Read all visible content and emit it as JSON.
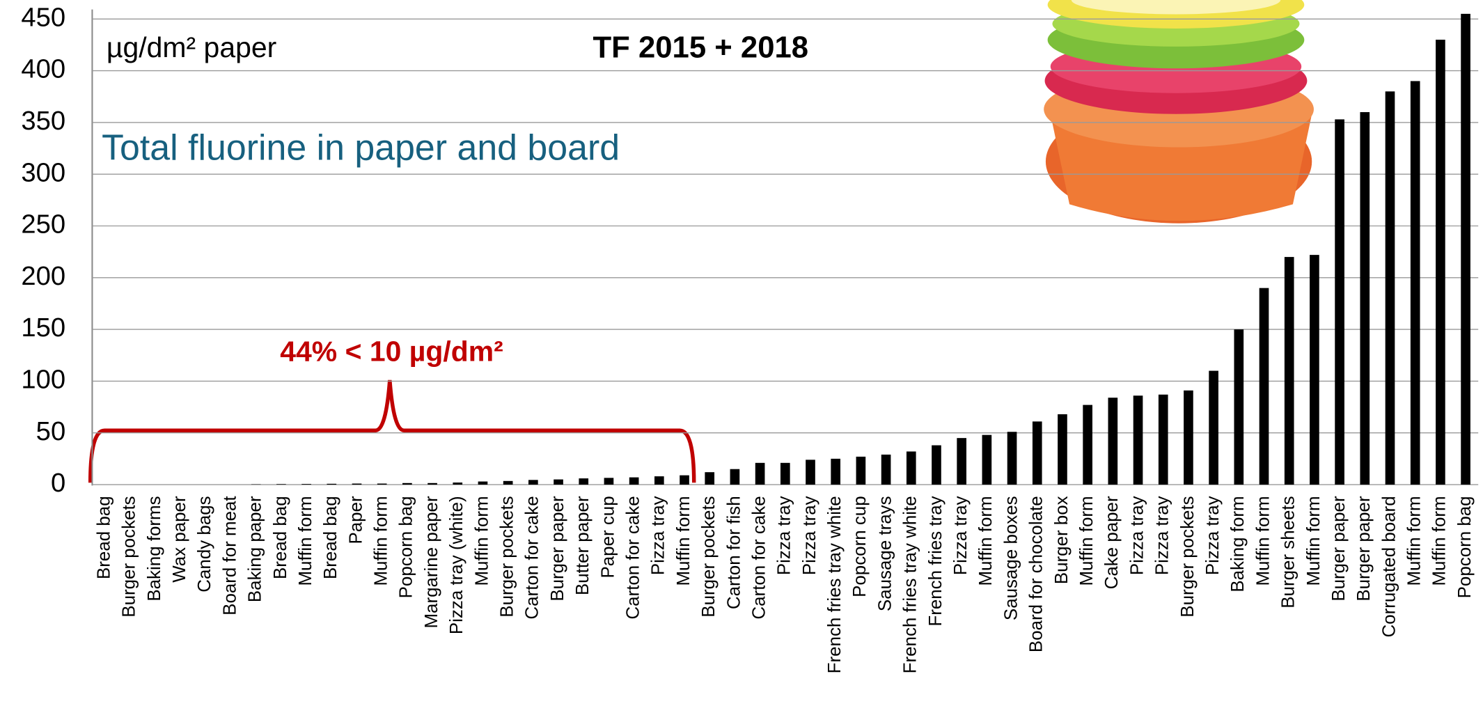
{
  "chart_data": {
    "type": "bar",
    "title": "TF 2015 + 2018",
    "subtitle": "Total fluorine in paper and board",
    "y_label": "µg/dm² paper",
    "annotation": "44% < 10 µg/dm²",
    "categories": [
      "Bread bag",
      "Burger pockets",
      "Baking forms",
      "Wax paper",
      "Candy bags",
      "Board for meat",
      "Baking paper",
      "Bread bag",
      "Muffin form",
      "Bread bag",
      "Paper",
      "Muffin form",
      "Popcorn bag",
      "Margarine paper",
      "Pizza tray (white)",
      "Muffin form",
      "Burger pockets",
      "Carton for cake",
      "Burger paper",
      "Butter paper",
      "Paper cup",
      "Carton for cake",
      "Pizza tray",
      "Muffin form",
      "Burger pockets",
      "Carton for fish",
      "Carton for cake",
      "Pizza tray",
      "Pizza tray",
      "French fries tray white",
      "Popcorn cup",
      "Sausage trays",
      "French fries tray white",
      "French fries tray",
      "Pizza tray",
      "Muffin form",
      "Sausage boxes",
      "Board for chocolate",
      "Burger box",
      "Muffin form",
      "Cake paper",
      "Pizza tray",
      "Pizza tray",
      "Burger pockets",
      "Pizza tray",
      "Baking form",
      "Muffin form",
      "Burger sheets",
      "Muffin form",
      "Burger paper",
      "Burger paper",
      "Corrugated board",
      "Muffin form",
      "Muffin form",
      "Popcorn bag"
    ],
    "values": [
      0,
      0,
      0,
      0,
      0,
      0,
      0.3,
      0.5,
      0.6,
      0.8,
      1,
      1,
      1.5,
      1.5,
      2,
      3,
      3.5,
      4.5,
      5,
      6,
      6.5,
      7,
      8,
      9,
      12,
      15,
      21,
      21,
      24,
      25,
      27,
      29,
      32,
      38,
      45,
      48,
      51,
      61,
      68,
      77,
      84,
      86,
      87,
      91,
      110,
      150,
      190,
      220,
      222,
      353,
      360,
      380,
      390,
      430,
      455
    ],
    "color": "#000000",
    "ylim": [
      0,
      460
    ],
    "yticks": [
      0,
      50,
      100,
      150,
      200,
      250,
      300,
      350,
      400,
      450
    ],
    "grid": true
  }
}
